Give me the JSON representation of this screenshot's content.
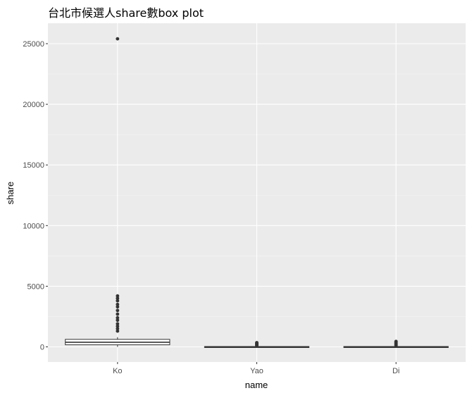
{
  "chart_data": {
    "type": "box",
    "title": "台北市候選人share數box plot",
    "xlabel": "name",
    "ylabel": "share",
    "categories": [
      "Ko",
      "Yao",
      "Di"
    ],
    "ylim": [
      -1250,
      26250
    ],
    "yticks": [
      0,
      5000,
      10000,
      15000,
      20000,
      25000
    ],
    "grid": true,
    "background": "#ebebeb",
    "boxes": [
      {
        "name": "Ko",
        "q1": 170,
        "median": 380,
        "q3": 620,
        "whisker_low": 0,
        "whisker_high": 800,
        "outliers": [
          1300,
          1500,
          1700,
          1900,
          2200,
          2400,
          2700,
          3000,
          3300,
          3500,
          3800,
          4000,
          4200,
          25400
        ]
      },
      {
        "name": "Yao",
        "q1": 0,
        "median": 10,
        "q3": 30,
        "whisker_low": 0,
        "whisker_high": 60,
        "outliers": [
          100,
          150,
          200,
          250,
          300,
          350
        ]
      },
      {
        "name": "Di",
        "q1": 0,
        "median": 10,
        "q3": 30,
        "whisker_low": 0,
        "whisker_high": 60,
        "outliers": [
          100,
          150,
          200,
          250,
          300,
          350,
          400,
          450
        ]
      }
    ]
  }
}
